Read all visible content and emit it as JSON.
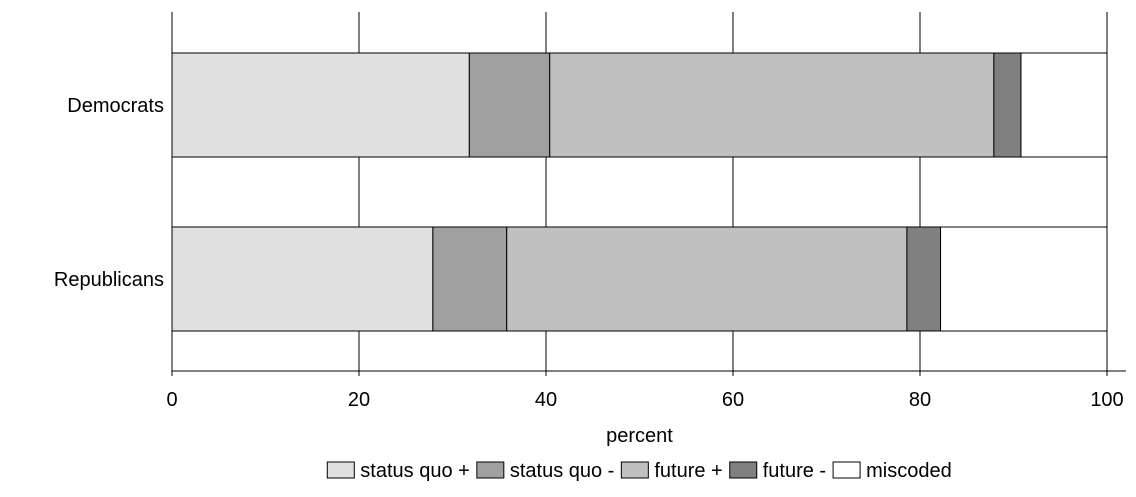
{
  "chart_data": {
    "type": "bar",
    "orientation": "horizontal",
    "stacked": true,
    "title": "",
    "xlabel": "percent",
    "ylabel": "",
    "xlim": [
      0,
      100
    ],
    "xticks": [
      0,
      20,
      40,
      60,
      80,
      100
    ],
    "grid": true,
    "legend_position": "bottom",
    "categories": [
      "Democrats",
      "Republicans"
    ],
    "series": [
      {
        "name": "status quo +",
        "color": "#e0e0e0",
        "values": [
          31.8,
          27.9
        ]
      },
      {
        "name": "status quo -",
        "color": "#a0a0a0",
        "values": [
          8.6,
          7.9
        ]
      },
      {
        "name": "future +",
        "color": "#c0c0c0",
        "values": [
          47.5,
          42.8
        ]
      },
      {
        "name": "future -",
        "color": "#808080",
        "values": [
          2.9,
          3.6
        ]
      },
      {
        "name": "miscoded",
        "color": "#ffffff",
        "values": [
          9.2,
          17.8
        ]
      }
    ]
  }
}
